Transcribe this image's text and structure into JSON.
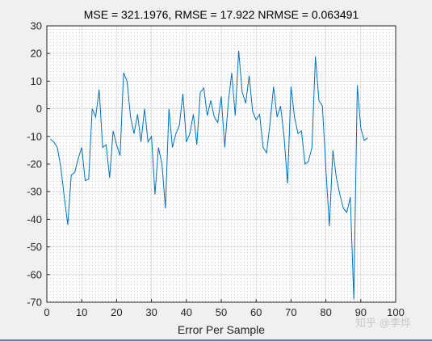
{
  "chart_data": {
    "type": "line",
    "title": "MSE = 321.1976, RMSE = 17.922 NRMSE = 0.063491",
    "xlabel": "Error Per Sample",
    "ylabel": "",
    "xlim": [
      0,
      100
    ],
    "ylim": [
      -70,
      30
    ],
    "xticks": [
      0,
      10,
      20,
      30,
      40,
      50,
      60,
      70,
      80,
      90,
      100
    ],
    "yticks": [
      30,
      20,
      10,
      0,
      -10,
      -20,
      -30,
      -40,
      -50,
      -60,
      -70
    ],
    "grid": "dotted minor grid on",
    "line_color": "#0072bd",
    "series": [
      {
        "values": [
          -11,
          -12,
          -14,
          -21,
          -32,
          -42,
          -24,
          -23,
          -18,
          -14,
          -26,
          -25.5,
          0,
          -3,
          7,
          -14,
          -13,
          -25,
          -8,
          -13,
          -17,
          13,
          10,
          -3,
          -9,
          -2,
          -12,
          0,
          -12,
          -10,
          -31,
          -14,
          -20,
          -36,
          0,
          -14,
          -9,
          -6,
          5.5,
          -12,
          -9,
          -2,
          -13,
          6,
          7.5,
          -2.5,
          3,
          -3,
          -5,
          4.5,
          -14,
          2,
          13,
          -2.5,
          21,
          6,
          2,
          12,
          -1,
          -4,
          -2,
          -14,
          -16,
          -5,
          8,
          -3,
          1,
          -10,
          -27,
          8,
          -3,
          -9,
          -8,
          -20,
          -19,
          -14,
          19,
          3,
          1,
          -22,
          -42.5,
          -15,
          -25,
          -31,
          -36,
          -37.5,
          -32,
          -69,
          8.5,
          -7,
          -11.5,
          -10.5
        ]
      }
    ]
  },
  "watermark": "知乎 @李烨"
}
